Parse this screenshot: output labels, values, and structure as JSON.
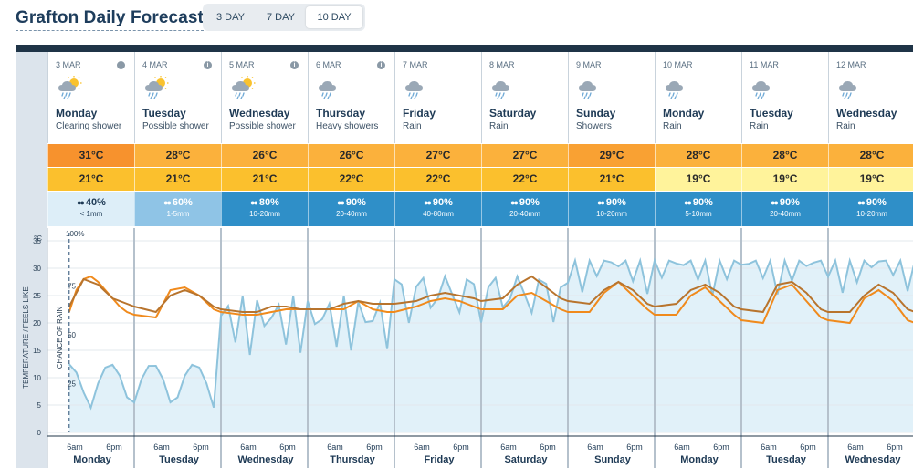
{
  "header": {
    "title": "Grafton Daily Forecast",
    "tabs": [
      {
        "label": "3 DAY",
        "active": false
      },
      {
        "label": "7 DAY",
        "active": false
      },
      {
        "label": "10 DAY",
        "active": true
      }
    ]
  },
  "days": [
    {
      "date": "3 MAR",
      "name": "Monday",
      "desc": "Clearing shower",
      "icon": "partly-sunny-shower-icon",
      "max": "31°C",
      "min": "21°C",
      "chance": "40%",
      "amount": "< 1mm",
      "max_color": "#f7922d",
      "min_color": "#fbc02d",
      "rain_color": "#ddeef8"
    },
    {
      "date": "4 MAR",
      "name": "Tuesday",
      "desc": "Possible shower",
      "icon": "partly-sunny-shower-icon",
      "max": "28°C",
      "min": "21°C",
      "chance": "60%",
      "amount": "1-5mm",
      "max_color": "#fbb13c",
      "min_color": "#fbc02d",
      "rain_color": "#8fc4e6"
    },
    {
      "date": "5 MAR",
      "name": "Wednesday",
      "desc": "Possible shower",
      "icon": "partly-sunny-shower-icon",
      "max": "26°C",
      "min": "21°C",
      "chance": "80%",
      "amount": "10-20mm",
      "max_color": "#fbb13c",
      "min_color": "#fbc02d",
      "rain_color": "#2f8fc8"
    },
    {
      "date": "6 MAR",
      "name": "Thursday",
      "desc": "Heavy showers",
      "icon": "heavy-shower-icon",
      "max": "26°C",
      "min": "22°C",
      "chance": "90%",
      "amount": "20-40mm",
      "max_color": "#fbb13c",
      "min_color": "#fbc02d",
      "rain_color": "#2f8fc8"
    },
    {
      "date": "7 MAR",
      "name": "Friday",
      "desc": "Rain",
      "icon": "rain-icon",
      "max": "27°C",
      "min": "22°C",
      "chance": "90%",
      "amount": "40-80mm",
      "max_color": "#fbb13c",
      "min_color": "#fbc02d",
      "rain_color": "#2f8fc8"
    },
    {
      "date": "8 MAR",
      "name": "Saturday",
      "desc": "Rain",
      "icon": "rain-icon",
      "max": "27°C",
      "min": "22°C",
      "chance": "90%",
      "amount": "20-40mm",
      "max_color": "#fbb13c",
      "min_color": "#fbc02d",
      "rain_color": "#2f8fc8"
    },
    {
      "date": "9 MAR",
      "name": "Sunday",
      "desc": "Showers",
      "icon": "shower-icon",
      "max": "29°C",
      "min": "21°C",
      "chance": "90%",
      "amount": "10-20mm",
      "max_color": "#f9a133",
      "min_color": "#fbc02d",
      "rain_color": "#2f8fc8"
    },
    {
      "date": "10 MAR",
      "name": "Monday",
      "desc": "Rain",
      "icon": "rain-icon",
      "max": "28°C",
      "min": "19°C",
      "chance": "90%",
      "amount": "5-10mm",
      "max_color": "#fbb13c",
      "min_color": "#fff39b",
      "rain_color": "#2f8fc8"
    },
    {
      "date": "11 MAR",
      "name": "Tuesday",
      "desc": "Rain",
      "icon": "rain-icon",
      "max": "28°C",
      "min": "19°C",
      "chance": "90%",
      "amount": "20-40mm",
      "max_color": "#fbb13c",
      "min_color": "#fff39b",
      "rain_color": "#2f8fc8"
    },
    {
      "date": "12 MAR",
      "name": "Wednesday",
      "desc": "Rain",
      "icon": "rain-icon",
      "max": "28°C",
      "min": "19°C",
      "chance": "90%",
      "amount": "10-20mm",
      "max_color": "#fbb13c",
      "min_color": "#fff39b",
      "rain_color": "#2f8fc8"
    }
  ],
  "chart": {
    "temp_axis_label": "TEMPERATURE / FEELS LIKE",
    "temp_unit": "°C",
    "rain_axis_label": "CHANCE OF RAIN",
    "rain_top": "100%",
    "temp_ticks": [
      "35",
      "30",
      "25",
      "20",
      "15",
      "10",
      "5",
      "0"
    ],
    "rain_ticks": [
      "75",
      "50",
      "25"
    ],
    "time_labels": [
      "6am",
      "6pm"
    ],
    "colors": {
      "temp": "#f08a1c",
      "feels": "#b8742d",
      "rain": "#8ec3dc",
      "rain_fill": "#dceef8"
    }
  },
  "chart_data": {
    "type": "line",
    "x_unit": "hours from midnight 3 MAR",
    "ylim_temp": [
      0,
      35
    ],
    "ylim_rain": [
      0,
      100
    ],
    "series": [
      {
        "name": "Temperature",
        "x": [
          6,
          8,
          10,
          12,
          14,
          16,
          18,
          20,
          22,
          24,
          30,
          34,
          38,
          42,
          46,
          48,
          54,
          58,
          62,
          66,
          70,
          72,
          78,
          82,
          86,
          90,
          94,
          96,
          102,
          106,
          110,
          114,
          118,
          120,
          126,
          130,
          134,
          138,
          142,
          144,
          150,
          154,
          158,
          162,
          166,
          168,
          174,
          178,
          182,
          186,
          190,
          192,
          198,
          202,
          206,
          210,
          214,
          216,
          222,
          226,
          230,
          234,
          238,
          240
        ],
        "values": [
          22,
          26,
          28,
          28.5,
          27.5,
          26,
          24.5,
          23,
          22,
          21.5,
          21,
          26,
          26.5,
          25,
          22.5,
          22,
          21.5,
          21.5,
          22,
          22.5,
          22.5,
          22.5,
          22.5,
          22.5,
          24,
          22.5,
          22,
          22,
          23,
          24,
          24.5,
          24,
          23,
          22.5,
          22.5,
          25,
          25.5,
          24,
          22.5,
          22,
          22,
          25.5,
          27.5,
          25,
          22.5,
          21.5,
          21.5,
          25,
          26.5,
          24,
          21.5,
          20.5,
          20,
          26,
          27,
          24,
          21,
          20.5,
          20,
          24.5,
          26,
          24,
          20.5,
          20
        ]
      },
      {
        "name": "Feels like",
        "x": [
          6,
          10,
          14,
          18,
          22,
          24,
          30,
          34,
          38,
          42,
          46,
          48,
          54,
          58,
          62,
          66,
          70,
          72,
          78,
          82,
          86,
          90,
          94,
          96,
          102,
          106,
          110,
          114,
          118,
          120,
          126,
          130,
          134,
          138,
          142,
          144,
          150,
          154,
          158,
          162,
          166,
          168,
          174,
          178,
          182,
          186,
          190,
          192,
          198,
          202,
          206,
          210,
          214,
          216,
          222,
          226,
          230,
          234,
          238,
          240
        ],
        "values": [
          23,
          28,
          27,
          24.5,
          23.5,
          23,
          22,
          25,
          26,
          25,
          23,
          22.5,
          22,
          22,
          23,
          23,
          22.5,
          22.5,
          22.5,
          23.5,
          24,
          23.5,
          23.5,
          23.5,
          24,
          25,
          25.5,
          25,
          24.5,
          24,
          24.5,
          27,
          28.5,
          26.5,
          24.5,
          24,
          23.5,
          26,
          27.5,
          26,
          23.5,
          23,
          23.5,
          26,
          27,
          25.5,
          23,
          22.5,
          22,
          27,
          27.5,
          25.5,
          22.5,
          22,
          22,
          25,
          27,
          25.5,
          22.5,
          22
        ]
      }
    ]
  }
}
